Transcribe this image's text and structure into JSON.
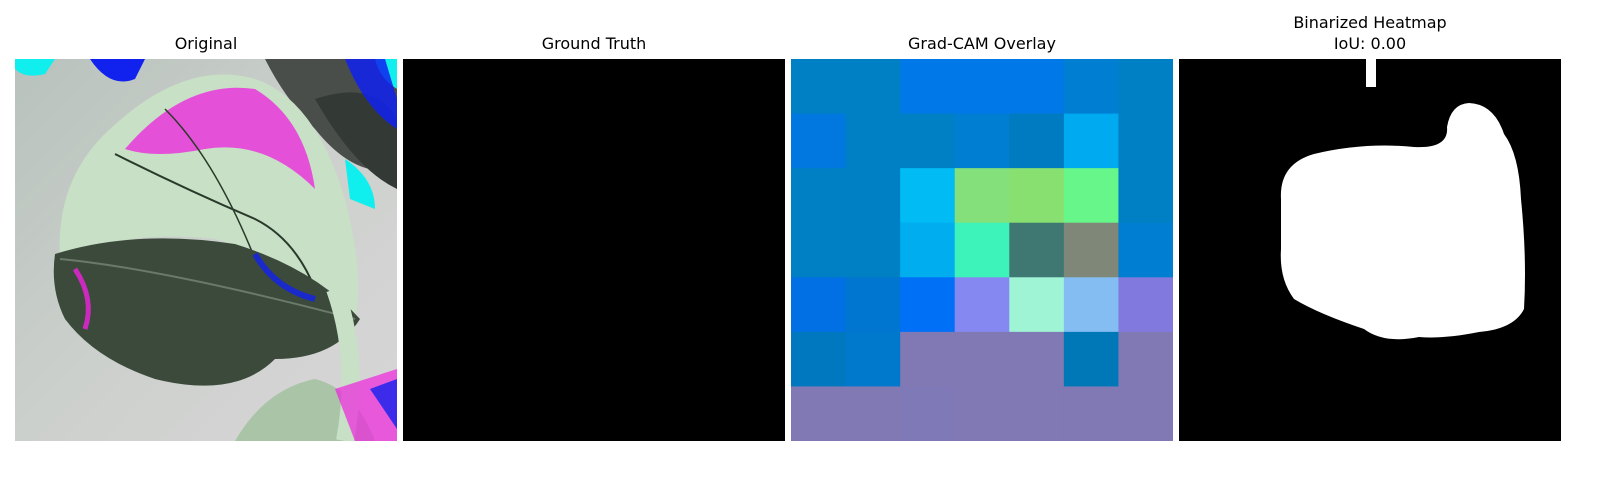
{
  "panels": [
    {
      "title": "Original"
    },
    {
      "title": "Ground Truth"
    },
    {
      "title": "Grad-CAM Overlay"
    },
    {
      "title": "Binarized Heatmap",
      "subtitle": "IoU: 0.00"
    }
  ],
  "gradcam_grid": [
    [
      "#0080c4",
      "#0080c4",
      "#0078e8",
      "#0078e8",
      "#0078e8",
      "#007ed2",
      "#0080c4"
    ],
    [
      "#0078e0",
      "#0080c4",
      "#0080c4",
      "#007ed2",
      "#007ac0",
      "#00aaf0",
      "#0080c4"
    ],
    [
      "#0080c4",
      "#0080c4",
      "#00bbf4",
      "#84e07a",
      "#88e070",
      "#66f68a",
      "#0080c4"
    ],
    [
      "#0080c4",
      "#0080c4",
      "#00adef",
      "#3df3ba",
      "#3f7873",
      "#7f8778",
      "#007ed2"
    ],
    [
      "#0070e4",
      "#0076d0",
      "#0070f6",
      "#8688f2",
      "#a0f4d6",
      "#84bdf2",
      "#8279df"
    ],
    [
      "#0078c0",
      "#0078cc",
      "#8079b4",
      "#8079b4",
      "#8079b4",
      "#0078b8",
      "#8079b4"
    ],
    [
      "#8079b4",
      "#8079b4",
      "#8079b8",
      "#8079b4",
      "#8079b4",
      "#8079b4",
      "#8079b4"
    ]
  ],
  "colors": {
    "leaf_light": "#c8e0c6",
    "leaf_dark": "#3c4a3c",
    "background": "#c4cac6",
    "spots_magenta": "#ee22dd",
    "spots_blue": "#1122ee",
    "spots_cyan": "#11eeee"
  }
}
